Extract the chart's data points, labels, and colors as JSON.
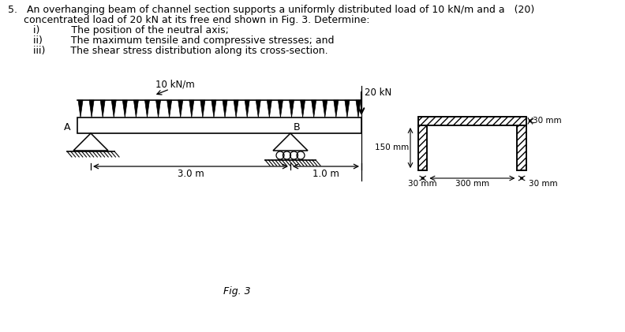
{
  "bg_color": "#ffffff",
  "text_color": "#000000",
  "udl_label": "10 kN/m",
  "force_label": "20 kN",
  "dim_30mm_top": "30 mm",
  "dim_150mm": "150 mm",
  "dim_30mm_left": "30 mm",
  "dim_300mm": "300 mm",
  "dim_30mm_right": "30 mm",
  "dim_3m": "3.0 m",
  "dim_1m": "1.0 m",
  "label_A": "A",
  "label_B": "B",
  "fig_label": "Fig. 3",
  "line1": "5.   An overhanging beam of channel section supports a uniformly distributed load of 10 kN/m and a   (20)",
  "line2": "     concentrated load of 20 kN at its free end shown in Fig. 3. Determine:",
  "item1": "i)          The position of the neutral axis;",
  "item2": "ii)         The maximum tensile and compressive stresses; and",
  "item3": "iii)        The shear stress distribution along its cross-section."
}
